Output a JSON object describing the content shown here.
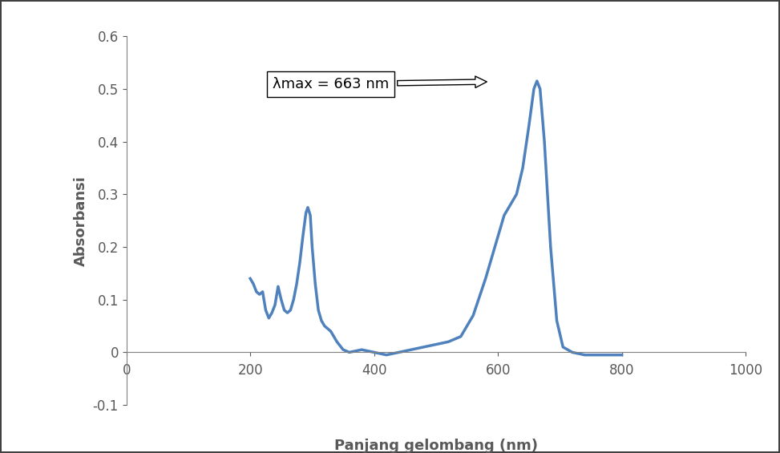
{
  "chart_data": {
    "type": "line",
    "x_label": "Panjang gelombang (nm)",
    "y_label": "Absorbansi",
    "annotation": "λmax = 663 nm",
    "x": [
      200,
      205,
      210,
      215,
      220,
      225,
      230,
      235,
      240,
      245,
      250,
      255,
      260,
      265,
      270,
      275,
      280,
      285,
      290,
      293,
      297,
      300,
      305,
      310,
      315,
      320,
      330,
      340,
      350,
      360,
      380,
      400,
      420,
      440,
      460,
      480,
      500,
      520,
      530,
      540,
      560,
      580,
      600,
      610,
      620,
      630,
      640,
      650,
      658,
      663,
      668,
      675,
      685,
      695,
      705,
      720,
      740,
      760,
      780,
      800
    ],
    "values": [
      0.14,
      0.13,
      0.115,
      0.11,
      0.115,
      0.08,
      0.065,
      0.075,
      0.09,
      0.125,
      0.1,
      0.08,
      0.075,
      0.08,
      0.1,
      0.13,
      0.17,
      0.22,
      0.265,
      0.275,
      0.26,
      0.2,
      0.13,
      0.08,
      0.06,
      0.05,
      0.04,
      0.02,
      0.005,
      0.0,
      0.005,
      0.0,
      -0.005,
      0.0,
      0.005,
      0.01,
      0.015,
      0.02,
      0.025,
      0.03,
      0.07,
      0.14,
      0.22,
      0.26,
      0.28,
      0.3,
      0.35,
      0.43,
      0.5,
      0.515,
      0.5,
      0.4,
      0.2,
      0.06,
      0.01,
      0.0,
      -0.005,
      -0.005,
      -0.005,
      -0.005
    ],
    "color": "#4f81bd",
    "xlim": [
      0,
      1000
    ],
    "xticks": [
      0,
      200,
      400,
      600,
      800,
      1000
    ],
    "ylim": [
      -0.1,
      0.6
    ],
    "yticks": [
      -0.1,
      0,
      0.1,
      0.2,
      0.3,
      0.4,
      0.5,
      0.6
    ],
    "grid": false
  }
}
